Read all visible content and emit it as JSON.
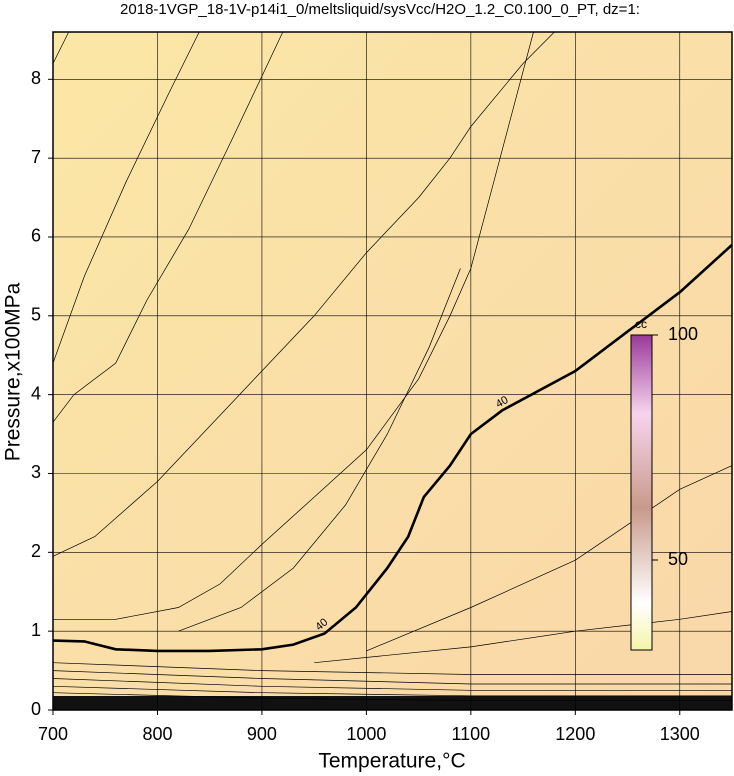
{
  "chart_data": {
    "type": "contour",
    "title": "2018-1VGP_18-1V-p14i1_0/meltsliquid/sysVcc/H2O_1.2_C0.100_0_PT, dz=1:",
    "x_label": "Temperature,°C",
    "y_label": "Pressure,x100MPa",
    "xlim": [
      700,
      1350
    ],
    "ylim": [
      0,
      8.6
    ],
    "xticks": [
      700,
      800,
      900,
      1000,
      1100,
      1200,
      1300
    ],
    "yticks": [
      0,
      1,
      2,
      3,
      4,
      5,
      6,
      7,
      8
    ],
    "grid": true,
    "colorbar": {
      "label": "cc",
      "lim": [
        30,
        100
      ],
      "ticks": [
        50,
        100
      ]
    },
    "contours": [
      {
        "label": "40",
        "x": [
          700,
          730,
          760,
          800,
          850,
          900,
          930,
          960,
          990,
          1020,
          1040,
          1055,
          1080,
          1100,
          1130,
          1200,
          1250,
          1300,
          1350
        ],
        "y": [
          0.88,
          0.87,
          0.77,
          0.75,
          0.75,
          0.77,
          0.83,
          0.97,
          1.3,
          1.8,
          2.2,
          2.7,
          3.1,
          3.5,
          3.8,
          4.3,
          4.8,
          5.3,
          5.9
        ]
      }
    ],
    "lines": [
      {
        "x": [
          700,
          715
        ],
        "y": [
          8.2,
          8.6
        ]
      },
      {
        "x": [
          700,
          730,
          770,
          810,
          840
        ],
        "y": [
          4.4,
          5.5,
          6.7,
          7.8,
          8.6
        ]
      },
      {
        "x": [
          700,
          720,
          760,
          790,
          830,
          870,
          920
        ],
        "y": [
          3.65,
          4.0,
          4.4,
          5.2,
          6.1,
          7.2,
          8.6
        ]
      },
      {
        "x": [
          700,
          740,
          800,
          850,
          900,
          950,
          1000,
          1050,
          1080,
          1100,
          1150,
          1180
        ],
        "y": [
          1.95,
          2.2,
          2.9,
          3.6,
          4.3,
          5.0,
          5.8,
          6.5,
          7.0,
          7.4,
          8.2,
          8.6
        ]
      },
      {
        "x": [
          700,
          760,
          820,
          860,
          900,
          950,
          1000,
          1050,
          1080,
          1100,
          1120,
          1140,
          1160
        ],
        "y": [
          1.15,
          1.15,
          1.3,
          1.6,
          2.1,
          2.7,
          3.3,
          4.2,
          5.0,
          5.6,
          6.6,
          7.6,
          8.6
        ]
      },
      {
        "x": [
          820,
          880,
          930,
          980,
          1020,
          1060,
          1090
        ],
        "y": [
          1.0,
          1.3,
          1.8,
          2.6,
          3.5,
          4.6,
          5.6
        ]
      },
      {
        "x": [
          1000,
          1100,
          1200,
          1300,
          1350
        ],
        "y": [
          0.75,
          1.3,
          1.9,
          2.8,
          3.1
        ]
      },
      {
        "x": [
          950,
          1100,
          1200,
          1300,
          1350
        ],
        "y": [
          0.6,
          0.8,
          1.0,
          1.15,
          1.25
        ]
      },
      {
        "x": [
          700,
          900,
          1100,
          1350
        ],
        "y": [
          0.6,
          0.5,
          0.45,
          0.45
        ]
      },
      {
        "x": [
          700,
          900,
          1100,
          1350
        ],
        "y": [
          0.5,
          0.4,
          0.33,
          0.33
        ]
      },
      {
        "x": [
          700,
          900,
          1100,
          1350
        ],
        "y": [
          0.4,
          0.3,
          0.25,
          0.25
        ]
      },
      {
        "x": [
          700,
          900,
          1100,
          1350
        ],
        "y": [
          0.3,
          0.22,
          0.18,
          0.18
        ]
      },
      {
        "x": [
          700,
          900,
          1100,
          1350
        ],
        "y": [
          0.22,
          0.15,
          0.12,
          0.12
        ]
      }
    ]
  }
}
